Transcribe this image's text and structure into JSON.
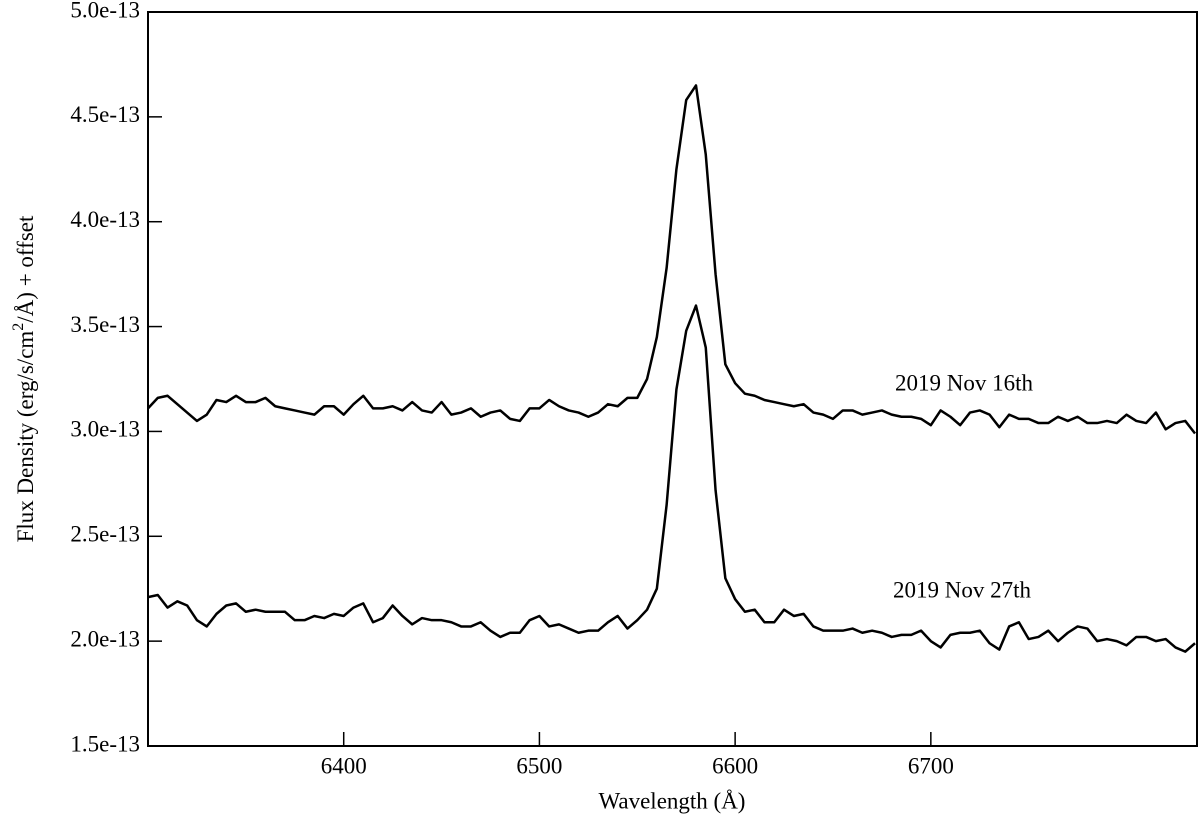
{
  "chart_data": {
    "type": "line",
    "xlabel": "Wavelength (Å)",
    "ylabel": [
      "Flux Density (erg/s/cm",
      "2",
      "/Å) + offset"
    ],
    "x": [
      6300,
      6305,
      6310,
      6315,
      6320,
      6325,
      6330,
      6335,
      6340,
      6345,
      6350,
      6355,
      6360,
      6365,
      6370,
      6375,
      6380,
      6385,
      6390,
      6395,
      6400,
      6405,
      6410,
      6415,
      6420,
      6425,
      6430,
      6435,
      6440,
      6445,
      6450,
      6455,
      6460,
      6465,
      6470,
      6475,
      6480,
      6485,
      6490,
      6495,
      6500,
      6505,
      6510,
      6515,
      6520,
      6525,
      6530,
      6535,
      6540,
      6545,
      6550,
      6555,
      6560,
      6565,
      6570,
      6575,
      6580,
      6585,
      6590,
      6595,
      6600,
      6605,
      6610,
      6615,
      6620,
      6625,
      6630,
      6635,
      6640,
      6645,
      6650,
      6655,
      6660,
      6665,
      6670,
      6675,
      6680,
      6685,
      6690,
      6695,
      6700,
      6705,
      6710,
      6715,
      6720,
      6725,
      6730,
      6735,
      6740,
      6745,
      6750,
      6755,
      6760,
      6765,
      6770,
      6775,
      6780,
      6785,
      6790,
      6795,
      6800,
      6805,
      6810,
      6815,
      6820,
      6825,
      6830,
      6835
    ],
    "series": [
      {
        "color": "#000000",
        "values": [
          3.11e-13,
          3.16e-13,
          3.17e-13,
          3.13e-13,
          3.09e-13,
          3.05e-13,
          3.08e-13,
          3.15e-13,
          3.14e-13,
          3.17e-13,
          3.14e-13,
          3.14e-13,
          3.16e-13,
          3.12e-13,
          3.11e-13,
          3.1e-13,
          3.09e-13,
          3.08e-13,
          3.12e-13,
          3.12e-13,
          3.08e-13,
          3.13e-13,
          3.17e-13,
          3.11e-13,
          3.11e-13,
          3.12e-13,
          3.1e-13,
          3.14e-13,
          3.1e-13,
          3.09e-13,
          3.14e-13,
          3.08e-13,
          3.09e-13,
          3.11e-13,
          3.07e-13,
          3.09e-13,
          3.1e-13,
          3.06e-13,
          3.05e-13,
          3.11e-13,
          3.11e-13,
          3.15e-13,
          3.12e-13,
          3.1e-13,
          3.09e-13,
          3.07e-13,
          3.09e-13,
          3.13e-13,
          3.12e-13,
          3.16e-13,
          3.16e-13,
          3.25e-13,
          3.45e-13,
          3.78e-13,
          4.25e-13,
          4.58e-13,
          4.65e-13,
          4.32e-13,
          3.75e-13,
          3.32e-13,
          3.23e-13,
          3.18e-13,
          3.17e-13,
          3.15e-13,
          3.14e-13,
          3.13e-13,
          3.12e-13,
          3.13e-13,
          3.09e-13,
          3.08e-13,
          3.06e-13,
          3.1e-13,
          3.1e-13,
          3.08e-13,
          3.09e-13,
          3.1e-13,
          3.08e-13,
          3.07e-13,
          3.07e-13,
          3.06e-13,
          3.03e-13,
          3.1e-13,
          3.07e-13,
          3.03e-13,
          3.09e-13,
          3.1e-13,
          3.08e-13,
          3.02e-13,
          3.08e-13,
          3.06e-13,
          3.06e-13,
          3.04e-13,
          3.04e-13,
          3.07e-13,
          3.05e-13,
          3.07e-13,
          3.04e-13,
          3.04e-13,
          3.05e-13,
          3.04e-13,
          3.08e-13,
          3.05e-13,
          3.04e-13,
          3.09e-13,
          3.01e-13,
          3.04e-13,
          3.05e-13,
          2.99e-13
        ]
      },
      {
        "color": "#000000",
        "values": [
          2.21e-13,
          2.22e-13,
          2.16e-13,
          2.19e-13,
          2.17e-13,
          2.1e-13,
          2.07e-13,
          2.13e-13,
          2.17e-13,
          2.18e-13,
          2.14e-13,
          2.15e-13,
          2.14e-13,
          2.14e-13,
          2.14e-13,
          2.1e-13,
          2.1e-13,
          2.12e-13,
          2.11e-13,
          2.13e-13,
          2.12e-13,
          2.16e-13,
          2.18e-13,
          2.09e-13,
          2.11e-13,
          2.17e-13,
          2.12e-13,
          2.08e-13,
          2.11e-13,
          2.1e-13,
          2.1e-13,
          2.09e-13,
          2.07e-13,
          2.07e-13,
          2.09e-13,
          2.05e-13,
          2.02e-13,
          2.04e-13,
          2.04e-13,
          2.1e-13,
          2.12e-13,
          2.07e-13,
          2.08e-13,
          2.06e-13,
          2.04e-13,
          2.05e-13,
          2.05e-13,
          2.09e-13,
          2.12e-13,
          2.06e-13,
          2.1e-13,
          2.15e-13,
          2.25e-13,
          2.65e-13,
          3.2e-13,
          3.48e-13,
          3.6e-13,
          3.4e-13,
          2.72e-13,
          2.3e-13,
          2.2e-13,
          2.14e-13,
          2.15e-13,
          2.09e-13,
          2.09e-13,
          2.15e-13,
          2.12e-13,
          2.13e-13,
          2.07e-13,
          2.05e-13,
          2.05e-13,
          2.05e-13,
          2.06e-13,
          2.04e-13,
          2.05e-13,
          2.04e-13,
          2.02e-13,
          2.03e-13,
          2.03e-13,
          2.05e-13,
          2e-13,
          1.97e-13,
          2.03e-13,
          2.04e-13,
          2.04e-13,
          2.05e-13,
          1.99e-13,
          1.96e-13,
          2.07e-13,
          2.09e-13,
          2.01e-13,
          2.02e-13,
          2.05e-13,
          2e-13,
          2.04e-13,
          2.07e-13,
          2.06e-13,
          2e-13,
          2.01e-13,
          2e-13,
          1.98e-13,
          2.02e-13,
          2.02e-13,
          2e-13,
          2.01e-13,
          1.97e-13,
          1.95e-13,
          1.99e-13
        ]
      }
    ],
    "annotations": [
      "2019 Nov 16th",
      "2019 Nov 27th"
    ],
    "xlim": [
      6300,
      6836
    ],
    "xticks": [
      6400,
      6500,
      6600,
      6700
    ],
    "ylim": [
      1.5e-13,
      5e-13
    ],
    "yticks": [
      {
        "value": 1.5e-13,
        "label": "1.5e-13"
      },
      {
        "value": 2e-13,
        "label": "2.0e-13"
      },
      {
        "value": 2.5e-13,
        "label": "2.5e-13"
      },
      {
        "value": 3e-13,
        "label": "3.0e-13"
      },
      {
        "value": 3.5e-13,
        "label": "3.5e-13"
      },
      {
        "value": 4e-13,
        "label": "4.0e-13"
      },
      {
        "value": 4.5e-13,
        "label": "4.5e-13"
      },
      {
        "value": 5e-13,
        "label": "5.0e-13"
      }
    ]
  }
}
